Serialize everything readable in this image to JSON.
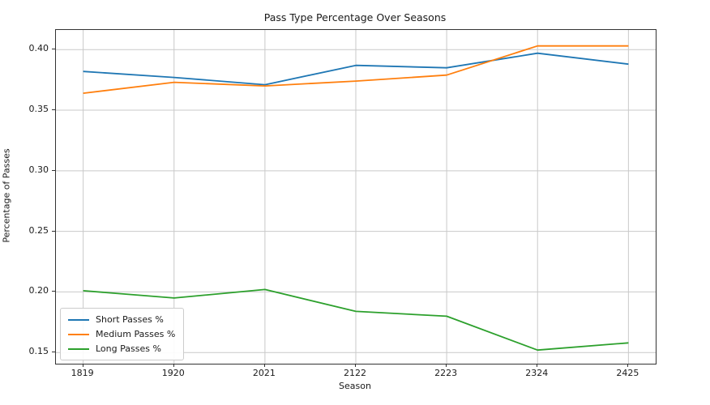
{
  "chart_data": {
    "type": "line",
    "title": "Pass Type Percentage Over Seasons",
    "xlabel": "Season",
    "ylabel": "Percentage of Passes",
    "categories": [
      "1819",
      "1920",
      "2021",
      "2122",
      "2223",
      "2324",
      "2425"
    ],
    "series": [
      {
        "name": "Short Passes %",
        "color": "#1f77b4",
        "values": [
          0.382,
          0.377,
          0.371,
          0.387,
          0.385,
          0.397,
          0.388
        ]
      },
      {
        "name": "Medium Passes %",
        "color": "#ff7f0e",
        "values": [
          0.364,
          0.373,
          0.37,
          0.374,
          0.379,
          0.403,
          0.403
        ]
      },
      {
        "name": "Long Passes %",
        "color": "#2ca02c",
        "values": [
          0.201,
          0.195,
          0.202,
          0.184,
          0.18,
          0.152,
          0.158
        ]
      }
    ],
    "yticks": [
      0.15,
      0.2,
      0.25,
      0.3,
      0.35,
      0.4
    ],
    "ytick_labels": [
      "0.15",
      "0.20",
      "0.25",
      "0.30",
      "0.35",
      "0.40"
    ],
    "ylim": [
      0.1408,
      0.4162
    ],
    "xlim": [
      -0.3,
      6.3
    ],
    "grid": true,
    "legend_position": "lower-left",
    "colors": {
      "grid": "#c9c9c9",
      "spine": "#333333",
      "text": "#1a1a1a",
      "background": "#ffffff"
    }
  }
}
